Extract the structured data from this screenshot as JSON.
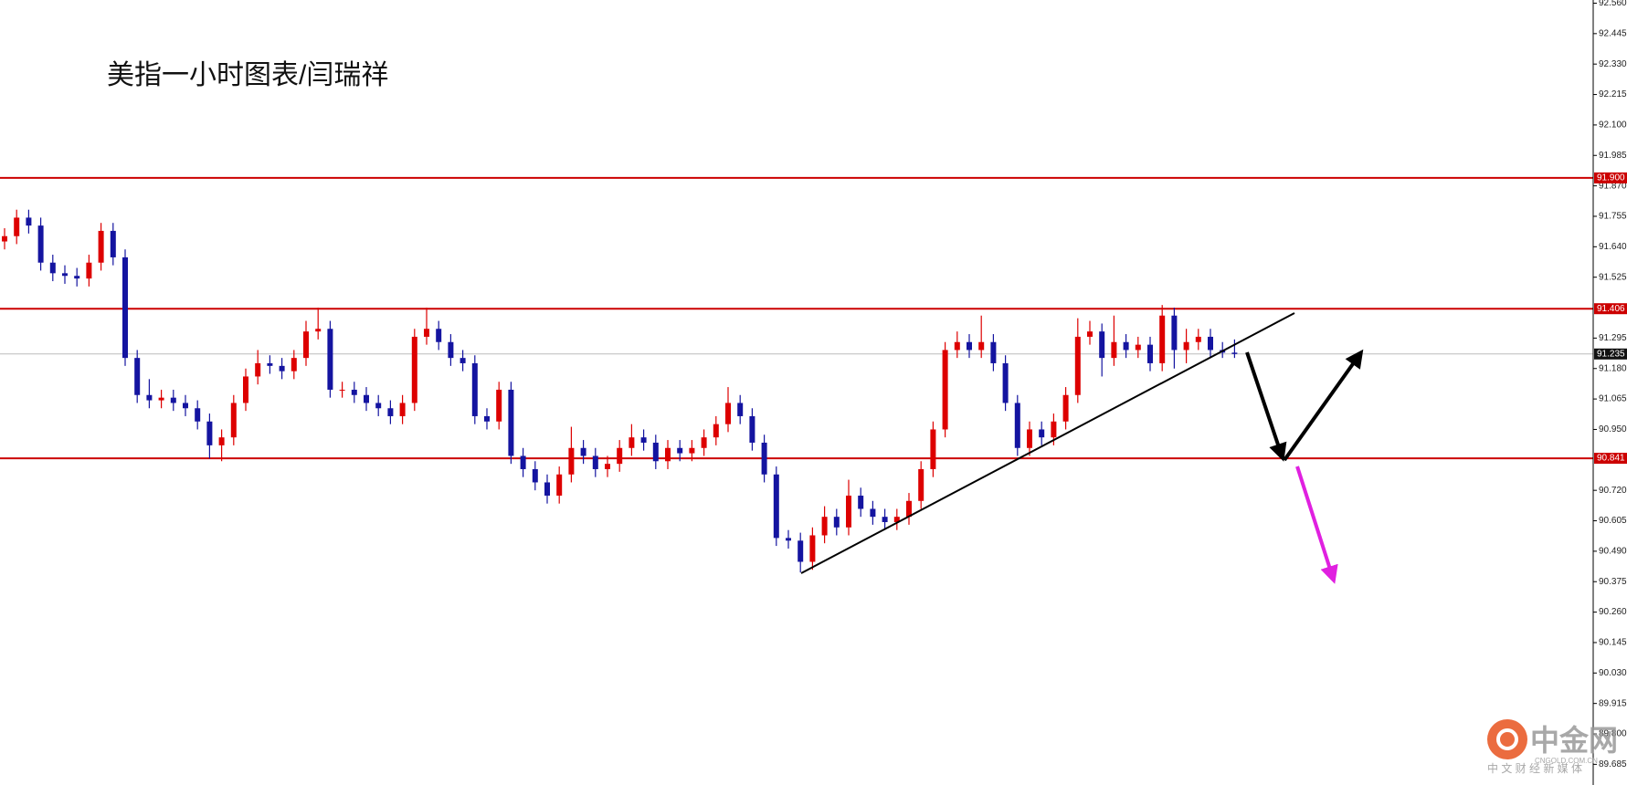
{
  "chart_data": {
    "type": "candlestick",
    "title": "美指一小时图表/闫瑞祥",
    "up_color": "#dd0000",
    "down_color": "#1414a0",
    "ylim": [
      89.607,
      92.572
    ],
    "yticks": [
      {
        "value": 92.56,
        "label": "92.560"
      },
      92.445,
      {
        "value": 92.33,
        "label": "92.330"
      },
      92.215,
      {
        "value": 92.1,
        "label": "92.100"
      },
      91.985,
      {
        "value": 91.87,
        "label": "91.870"
      },
      91.755,
      {
        "value": 91.64,
        "label": "91.640"
      },
      91.525,
      91.295,
      {
        "value": 91.18,
        "label": "91.180"
      },
      91.065,
      {
        "value": 90.95,
        "label": "90.950"
      },
      {
        "value": 90.72,
        "label": "90.720"
      },
      90.605,
      {
        "value": 90.49,
        "label": "90.490"
      },
      90.375,
      {
        "value": 90.26,
        "label": "90.260"
      },
      90.145,
      {
        "value": 90.03,
        "label": "90.030"
      },
      89.915,
      {
        "value": 89.8,
        "label": "89.800"
      },
      89.685
    ],
    "levels": [
      {
        "value": 91.9,
        "label": "91.900",
        "color": "#cc0000"
      },
      {
        "value": 91.406,
        "label": "91.406",
        "color": "#cc0000"
      },
      {
        "value": 90.841,
        "label": "90.841",
        "color": "#cc0000"
      }
    ],
    "current_price": 91.235,
    "open": [
      91.66,
      91.68,
      91.75,
      91.72,
      91.58,
      91.54,
      91.53,
      91.52,
      91.58,
      91.7,
      91.6,
      91.22,
      91.08,
      91.06,
      91.07,
      91.05,
      91.03,
      90.98,
      90.89,
      90.92,
      91.05,
      91.15,
      91.2,
      91.19,
      91.17,
      91.22,
      91.32,
      91.33,
      91.1,
      91.1,
      91.08,
      91.05,
      91.03,
      91.0,
      91.05,
      91.3,
      91.33,
      91.28,
      91.22,
      91.2,
      91.0,
      90.98,
      91.1,
      90.85,
      90.8,
      90.75,
      90.7,
      90.78,
      90.88,
      90.85,
      90.8,
      90.82,
      90.88,
      90.92,
      90.9,
      90.83,
      90.88,
      90.86,
      90.88,
      90.92,
      90.97,
      91.05,
      91.0,
      90.9,
      90.78,
      90.54,
      90.53,
      90.45,
      90.55,
      90.62,
      90.58,
      90.7,
      90.65,
      90.62,
      90.6,
      90.62,
      90.68,
      90.8,
      90.95,
      91.25,
      91.28,
      91.25,
      91.28,
      91.2,
      91.05,
      90.88,
      90.95,
      90.92,
      90.98,
      91.08,
      91.3,
      91.32,
      91.22,
      91.28,
      91.25,
      91.27,
      91.2,
      91.38,
      91.25,
      91.28,
      91.3,
      91.25,
      91.24
    ],
    "high": [
      91.71,
      91.78,
      91.78,
      91.75,
      91.61,
      91.57,
      91.56,
      91.61,
      91.73,
      91.73,
      91.63,
      91.25,
      91.14,
      91.1,
      91.1,
      91.08,
      91.06,
      91.01,
      90.95,
      91.08,
      91.18,
      91.25,
      91.23,
      91.22,
      91.25,
      91.36,
      91.41,
      91.36,
      91.13,
      91.13,
      91.11,
      91.08,
      91.06,
      91.08,
      91.33,
      91.41,
      91.36,
      91.31,
      91.25,
      91.23,
      91.03,
      91.13,
      91.13,
      90.88,
      90.83,
      90.78,
      90.81,
      90.96,
      90.91,
      90.88,
      90.85,
      90.91,
      90.97,
      90.95,
      90.93,
      90.91,
      90.91,
      90.91,
      90.95,
      91.0,
      91.11,
      91.08,
      91.03,
      90.93,
      90.81,
      90.57,
      90.56,
      90.58,
      90.66,
      90.65,
      90.76,
      90.73,
      90.68,
      90.65,
      90.65,
      90.71,
      90.83,
      90.98,
      91.28,
      91.32,
      91.31,
      91.38,
      91.31,
      91.23,
      91.08,
      90.98,
      90.98,
      91.01,
      91.11,
      91.37,
      91.36,
      91.35,
      91.38,
      91.31,
      91.3,
      91.3,
      91.42,
      91.41,
      91.33,
      91.33,
      91.33,
      91.28,
      91.29
    ],
    "low": [
      91.63,
      91.65,
      91.69,
      91.55,
      91.51,
      91.5,
      91.49,
      91.49,
      91.55,
      91.57,
      91.19,
      91.05,
      91.03,
      91.03,
      91.02,
      91.0,
      90.95,
      90.84,
      90.83,
      90.89,
      91.02,
      91.12,
      91.16,
      91.14,
      91.14,
      91.19,
      91.29,
      91.07,
      91.07,
      91.05,
      91.02,
      91.0,
      90.97,
      90.97,
      91.02,
      91.27,
      91.25,
      91.19,
      91.17,
      90.97,
      90.95,
      90.95,
      90.82,
      90.77,
      90.72,
      90.67,
      90.67,
      90.75,
      90.82,
      90.77,
      90.77,
      90.79,
      90.85,
      90.87,
      90.8,
      90.8,
      90.83,
      90.83,
      90.85,
      90.89,
      90.94,
      90.97,
      90.87,
      90.75,
      90.51,
      90.5,
      90.41,
      90.42,
      90.52,
      90.55,
      90.55,
      90.62,
      90.59,
      90.57,
      90.57,
      90.59,
      90.65,
      90.77,
      90.92,
      91.22,
      91.22,
      91.22,
      91.17,
      91.02,
      90.85,
      90.85,
      90.89,
      90.89,
      90.95,
      91.05,
      91.27,
      91.15,
      91.19,
      91.22,
      91.22,
      91.17,
      91.17,
      91.18,
      91.2,
      91.25,
      91.22,
      91.22,
      91.22
    ],
    "close": [
      91.68,
      91.75,
      91.72,
      91.58,
      91.54,
      91.53,
      91.52,
      91.58,
      91.7,
      91.6,
      91.22,
      91.08,
      91.06,
      91.07,
      91.05,
      91.03,
      90.98,
      90.89,
      90.92,
      91.05,
      91.15,
      91.2,
      91.19,
      91.17,
      91.22,
      91.32,
      91.33,
      91.1,
      91.1,
      91.08,
      91.05,
      91.03,
      91.0,
      91.05,
      91.3,
      91.33,
      91.28,
      91.22,
      91.2,
      91.0,
      90.98,
      91.1,
      90.85,
      90.8,
      90.75,
      90.7,
      90.78,
      90.88,
      90.85,
      90.8,
      90.82,
      90.88,
      90.92,
      90.9,
      90.83,
      90.88,
      90.86,
      90.88,
      90.92,
      90.97,
      91.05,
      91.0,
      90.9,
      90.78,
      90.54,
      90.53,
      90.45,
      90.55,
      90.62,
      90.58,
      90.7,
      90.65,
      90.62,
      90.6,
      90.62,
      90.68,
      90.8,
      90.95,
      91.25,
      91.28,
      91.25,
      91.28,
      91.2,
      91.05,
      90.88,
      90.95,
      90.92,
      90.98,
      91.08,
      91.3,
      91.32,
      91.22,
      91.28,
      91.25,
      91.27,
      91.2,
      91.38,
      91.25,
      91.28,
      91.3,
      91.25,
      91.24,
      91.235
    ],
    "watermark": {
      "name": "中金网",
      "site": "CNGOLD.COM.CN",
      "tagline": "中 文 财 经 新 媒 体"
    }
  }
}
